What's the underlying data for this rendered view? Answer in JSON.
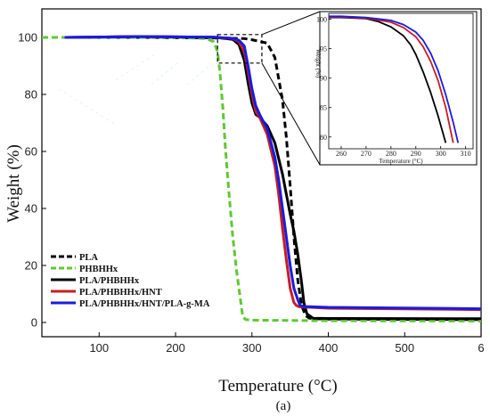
{
  "chart_data": [
    {
      "type": "line",
      "title": "",
      "xlabel": "Temperature (°C)",
      "ylabel": "Weight (%)",
      "xlim": [
        25,
        600
      ],
      "ylim": [
        -5,
        110
      ],
      "xticks": [
        "100",
        "200",
        "300",
        "400",
        "500",
        "6"
      ],
      "yticks": [
        "0",
        "20",
        "40",
        "60",
        "80",
        "100"
      ],
      "legend_position": "bottom-left",
      "caption": "(a)",
      "series": [
        {
          "name": "PLA",
          "color": "#000000",
          "dash": "dashed",
          "x": [
            55,
            150,
            250,
            290,
            300,
            320,
            330,
            340,
            345,
            350,
            355,
            360,
            365,
            370,
            375,
            380,
            400,
            600
          ],
          "y": [
            100,
            100,
            99.8,
            99.6,
            99.2,
            98,
            93,
            78,
            65,
            48,
            30,
            15,
            6,
            2.5,
            1.5,
            1.3,
            1.2,
            1
          ]
        },
        {
          "name": "PHBHHx",
          "color": "#5ec832",
          "dash": "dashed",
          "x": [
            25,
            200,
            240,
            250,
            255,
            258,
            262,
            265,
            270,
            275,
            280,
            285,
            288,
            292,
            300,
            400,
            600
          ],
          "y": [
            100,
            100,
            99.6,
            98.5,
            95,
            88,
            75,
            62,
            45,
            30,
            18,
            8,
            2,
            1,
            0.8,
            0.6,
            0.5
          ]
        },
        {
          "name": "PLA/PHBHHx",
          "color": "#000000",
          "dash": "solid",
          "x": [
            55,
            150,
            250,
            275,
            283,
            290,
            295,
            300,
            305,
            310,
            320,
            330,
            340,
            345,
            350,
            355,
            360,
            365,
            368,
            372,
            380,
            400,
            600
          ],
          "y": [
            100,
            100.3,
            100.1,
            99.3,
            97.5,
            92,
            84,
            77,
            73,
            72,
            69,
            63,
            52,
            45,
            38,
            32,
            24,
            14,
            7,
            3,
            1.5,
            1.4,
            1.3
          ]
        },
        {
          "name": "PLA/PHBHHx/HNT",
          "color": "#c81e1e",
          "dash": "solid",
          "x": [
            55,
            150,
            250,
            275,
            283,
            290,
            295,
            300,
            305,
            310,
            320,
            330,
            335,
            340,
            345,
            350,
            355,
            358,
            362,
            370,
            400,
            600
          ],
          "y": [
            100,
            100.3,
            100.1,
            99.6,
            98.5,
            95,
            88,
            80,
            74,
            72,
            66,
            55,
            45,
            33,
            22,
            12,
            7,
            6,
            5.5,
            5.4,
            5,
            4.5
          ]
        },
        {
          "name": "PLA/PHBHHx/HNT/PLA-g-MA",
          "color": "#1a1ae6",
          "dash": "solid",
          "x": [
            55,
            150,
            250,
            275,
            283,
            290,
            295,
            300,
            305,
            310,
            320,
            330,
            335,
            340,
            345,
            350,
            355,
            360,
            363,
            368,
            400,
            600
          ],
          "y": [
            100,
            100.3,
            100.1,
            99.7,
            99,
            97,
            90,
            82,
            76,
            73,
            68,
            58,
            50,
            40,
            30,
            20,
            12,
            8,
            6,
            5.6,
            5.3,
            4.8
          ]
        }
      ]
    },
    {
      "type": "line",
      "title": "",
      "xlabel": "Temperature (°C)",
      "ylabel": "Weight (%)",
      "xlim": [
        255,
        313
      ],
      "ylim": [
        78,
        101
      ],
      "xticks": [
        "260",
        "270",
        "280",
        "290",
        "300",
        "310"
      ],
      "yticks": [
        "80",
        "85",
        "90",
        "95",
        "100"
      ],
      "series": [
        {
          "name": "PLA/PHBHHx",
          "color": "#000000",
          "x": [
            255,
            260,
            270,
            275,
            280,
            285,
            288,
            290,
            293,
            296,
            299,
            302
          ],
          "y": [
            100.3,
            100.3,
            100.1,
            99.6,
            98.7,
            97.2,
            95.6,
            94,
            91,
            87.5,
            83.5,
            79
          ]
        },
        {
          "name": "PLA/PHBHHx/HNT",
          "color": "#c81e1e",
          "x": [
            255,
            260,
            270,
            280,
            285,
            290,
            293,
            296,
            299,
            302,
            305
          ],
          "y": [
            100.4,
            100.4,
            100.2,
            99.5,
            98.6,
            97,
            95.3,
            92.8,
            89.5,
            85,
            79
          ]
        },
        {
          "name": "PLA/PHBHHx/HNT/PLA-g-MA",
          "color": "#1a1ae6",
          "x": [
            255,
            260,
            270,
            280,
            285,
            290,
            293,
            296,
            299,
            302,
            305,
            307
          ],
          "y": [
            100.5,
            100.5,
            100.3,
            99.8,
            99.1,
            97.8,
            96.4,
            94.2,
            91.2,
            87.2,
            82.5,
            79
          ]
        }
      ]
    }
  ]
}
